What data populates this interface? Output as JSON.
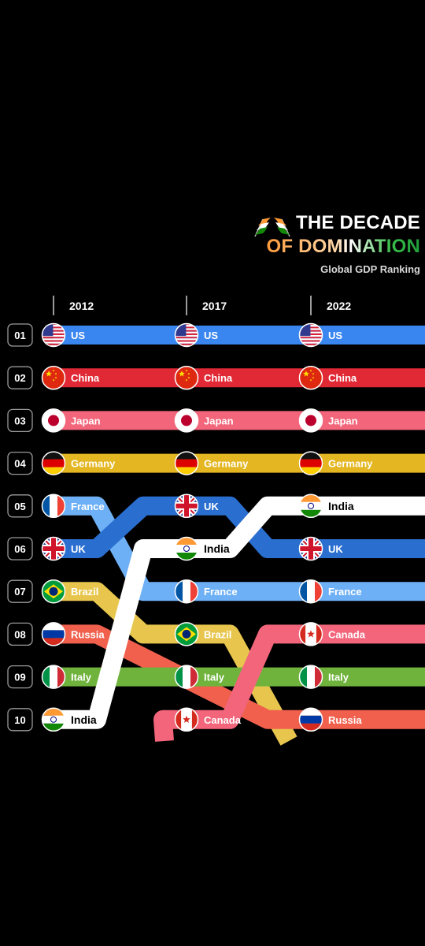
{
  "title": {
    "line1": "THE DECADE",
    "line2": "OF DOMINATION",
    "subtitle": "Global GDP Ranking"
  },
  "colors": {
    "US": "#3a86f0",
    "China": "#e02935",
    "Japan": "#f2657a",
    "Germany": "#e4b622",
    "France": "#6eb0f5",
    "UK": "#2a6fd0",
    "Brazil": "#e8c64e",
    "Russia": "#f0604d",
    "Italy": "#6fb33c",
    "India": "#ffffff",
    "Canada": "#f2657a"
  },
  "chart_data": {
    "type": "bump",
    "x": [
      "2012",
      "2017",
      "2022"
    ],
    "ranks": [
      "01",
      "02",
      "03",
      "04",
      "05",
      "06",
      "07",
      "08",
      "09",
      "10"
    ],
    "series": [
      {
        "name": "US",
        "ranks": [
          1,
          1,
          1
        ]
      },
      {
        "name": "China",
        "ranks": [
          2,
          2,
          2
        ]
      },
      {
        "name": "Japan",
        "ranks": [
          3,
          3,
          3
        ]
      },
      {
        "name": "Germany",
        "ranks": [
          4,
          4,
          4
        ]
      },
      {
        "name": "France",
        "ranks": [
          5,
          7,
          7
        ]
      },
      {
        "name": "UK",
        "ranks": [
          6,
          5,
          6
        ]
      },
      {
        "name": "Brazil",
        "ranks": [
          7,
          8,
          null
        ]
      },
      {
        "name": "Russia",
        "ranks": [
          8,
          null,
          10
        ]
      },
      {
        "name": "Italy",
        "ranks": [
          9,
          9,
          9
        ]
      },
      {
        "name": "India",
        "ranks": [
          10,
          6,
          5
        ]
      },
      {
        "name": "Canada",
        "ranks": [
          null,
          10,
          8
        ]
      }
    ]
  }
}
